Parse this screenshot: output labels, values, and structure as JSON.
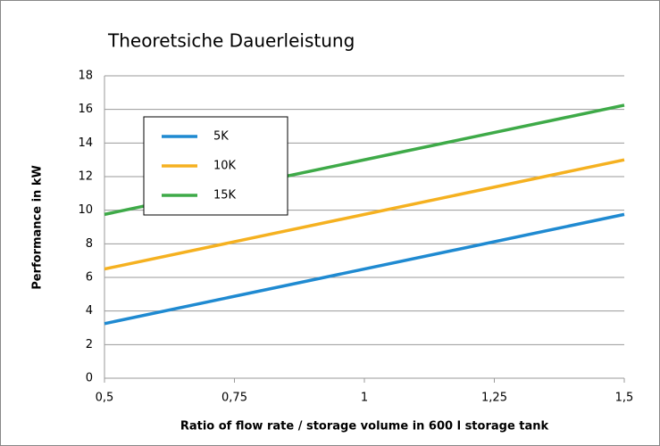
{
  "chart_data": {
    "type": "line",
    "title": "Theoretsiche Dauerleistung",
    "xlabel": "Ratio of flow rate / storage volume in 600 l storage tank",
    "ylabel": "Performance in kW",
    "x": [
      0.5,
      1.5
    ],
    "series": [
      {
        "name": "5K",
        "color": "#1f8ad1",
        "values": [
          3.25,
          9.75
        ]
      },
      {
        "name": "10K",
        "color": "#f5b120",
        "values": [
          6.5,
          13
        ]
      },
      {
        "name": "15K",
        "color": "#3eaa48",
        "values": [
          9.75,
          16.25
        ]
      }
    ],
    "xlim": [
      0.5,
      1.5
    ],
    "xticks": [
      {
        "value": 0.5,
        "label": "0,5"
      },
      {
        "value": 0.75,
        "label": "0,75"
      },
      1,
      {
        "value": 1.25,
        "label": "1,25"
      },
      {
        "value": 1.5,
        "label": "1,5"
      }
    ],
    "ylim": [
      0,
      18
    ],
    "yticks": [
      0,
      2,
      4,
      6,
      8,
      10,
      12,
      14,
      16,
      18
    ],
    "grid": true,
    "legend": "upper left"
  }
}
